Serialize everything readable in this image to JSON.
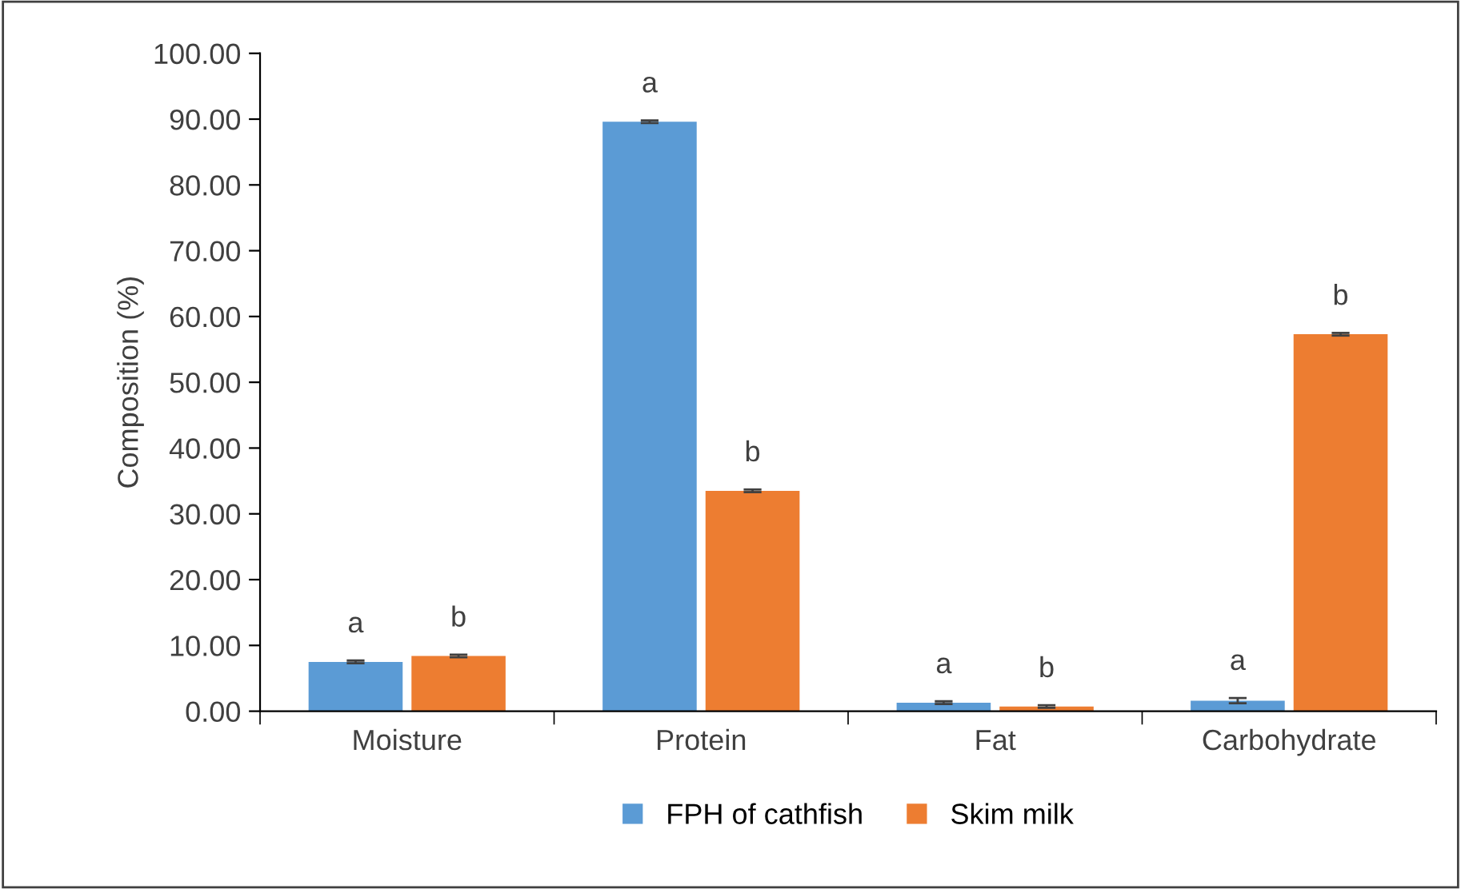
{
  "chart_data": {
    "type": "bar",
    "ylabel": "Composition (%)",
    "categories": [
      "Moisture",
      "Protein",
      "Fat",
      "Carbohydrate"
    ],
    "series": [
      {
        "name": "FPH of cathfish",
        "color": "#5b9bd5",
        "values": [
          7.5,
          89.6,
          1.3,
          1.6
        ],
        "errors": [
          0.2,
          0.2,
          0.2,
          0.4
        ],
        "value_labels": [
          "a",
          "a",
          "a",
          "a"
        ]
      },
      {
        "name": "Skim milk",
        "color": "#ed7d31",
        "values": [
          8.4,
          33.5,
          0.7,
          57.3
        ],
        "errors": [
          0.2,
          0.2,
          0.2,
          0.2
        ],
        "value_labels": [
          "b",
          "b",
          "b",
          "b"
        ]
      }
    ],
    "ylim": [
      0,
      100
    ],
    "yticks": [
      {
        "value": 0,
        "label": "0.00"
      },
      {
        "value": 10,
        "label": "10.00"
      },
      {
        "value": 20,
        "label": "20.00"
      },
      {
        "value": 30,
        "label": "30.00"
      },
      {
        "value": 40,
        "label": "40.00"
      },
      {
        "value": 50,
        "label": "50.00"
      },
      {
        "value": 60,
        "label": "60.00"
      },
      {
        "value": 70,
        "label": "70.00"
      },
      {
        "value": 80,
        "label": "80.00"
      },
      {
        "value": 90,
        "label": "90.00"
      },
      {
        "value": 100,
        "label": "100.00"
      }
    ],
    "grid": false,
    "legend": "bottom"
  }
}
